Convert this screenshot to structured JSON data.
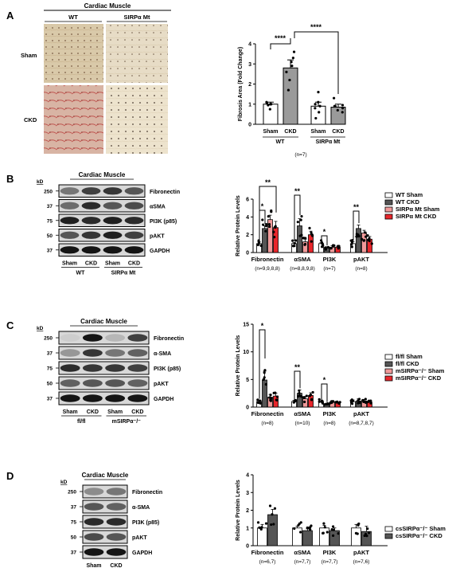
{
  "colors": {
    "black": "#000000",
    "gray": "#9a9a9a",
    "dark_gray": "#555555",
    "pink": "#f19a9a",
    "red": "#e8262b"
  },
  "panels": {
    "A": {
      "letter": "A",
      "header": "Cardiac Muscle",
      "col_labels": [
        "WT",
        "SIRPα Mt"
      ],
      "row_labels": [
        "Sham",
        "CKD"
      ]
    },
    "B": {
      "letter": "B",
      "header": "Cardiac Muscle",
      "kd": "kD",
      "markers": [
        "250",
        "37",
        "75",
        "50",
        "37"
      ],
      "bands": [
        "Fibronectin",
        "αSMA",
        "PI3K (p85)",
        "pAKT",
        "GAPDH"
      ],
      "lanes": [
        "Sham",
        "CKD",
        "Sham",
        "CKD"
      ],
      "groups": [
        "WT",
        "SIRPα Mt"
      ]
    },
    "C": {
      "letter": "C",
      "header": "Cardiac Muscle",
      "kd": "kD",
      "markers": [
        "250",
        "37",
        "75",
        "50",
        "37"
      ],
      "bands": [
        "Fibronectin",
        "α-SMA",
        "PI3K (p85)",
        "pAKT",
        "GAPDH"
      ],
      "lanes": [
        "Sham",
        "CKD",
        "Sham",
        "CKD"
      ],
      "groups": [
        "fl/fl",
        "mSIRPα⁻/⁻"
      ]
    },
    "D": {
      "letter": "D",
      "header": "Cardiac Muscle",
      "kd": "kD",
      "markers": [
        "250",
        "37",
        "75",
        "50",
        "37"
      ],
      "bands": [
        "Fibronectin",
        "α-SMA",
        "PI3K (p85)",
        "pAKT",
        "GAPDH"
      ],
      "lanes": [
        "Sham",
        "CKD"
      ],
      "groups": [
        "csSIRPα⁻/⁻"
      ]
    }
  },
  "chart_data": [
    {
      "panel": "A",
      "type": "bar",
      "ylabel": "Fibrosis Area (Fold Change)",
      "ylim": [
        0,
        4
      ],
      "yticks": [
        "0",
        "1",
        "2",
        "3",
        "4"
      ],
      "categories": [
        "Sham",
        "CKD",
        "Sham",
        "CKD"
      ],
      "groups": [
        "WT",
        "SIRPα Mt"
      ],
      "n_label": "(n=7)",
      "values": [
        1.0,
        2.8,
        0.9,
        0.85
      ],
      "errors": [
        0.1,
        0.4,
        0.2,
        0.15
      ],
      "points": [
        [
          1.0,
          1.0,
          1.05,
          0.95,
          0.75,
          1.0,
          1.1
        ],
        [
          3.6,
          3.1,
          2.2,
          1.7,
          3.3,
          2.9,
          2.6
        ],
        [
          1.6,
          0.3,
          0.9,
          0.8,
          0.6,
          1.1,
          1.0
        ],
        [
          1.3,
          0.6,
          0.8,
          0.9,
          0.7,
          0.95,
          0.9
        ]
      ],
      "fill": [
        "#ffffff",
        "#9a9a9a",
        "#ffffff",
        "#9a9a9a"
      ],
      "significance": [
        {
          "text": "****"
        },
        {
          "text": "****"
        }
      ]
    },
    {
      "panel": "B",
      "type": "bar",
      "ylabel": "Relative Protein Levels",
      "ylim": [
        0,
        6
      ],
      "yticks": [
        "0",
        "2",
        "4",
        "6"
      ],
      "categories": [
        "Fibronectin",
        "αSMA",
        "PI3K",
        "pAKT"
      ],
      "n_labels": [
        "(n=9,9,8,8)",
        "(n=8,8,9,8)",
        "(n=7)",
        "(n=8)"
      ],
      "series": [
        {
          "name": "WT Sham",
          "fill": "#ffffff",
          "values": [
            1.0,
            1.0,
            1.0,
            1.0
          ],
          "errors": [
            0.2,
            0.1,
            0.1,
            0.2
          ]
        },
        {
          "name": "WT CKD",
          "fill": "#555555",
          "values": [
            2.7,
            3.0,
            0.5,
            2.7
          ],
          "errors": [
            0.3,
            0.8,
            0.15,
            0.4
          ]
        },
        {
          "name": "SIRPα Mt Sham",
          "fill": "#f19a9a",
          "values": [
            3.7,
            1.2,
            0.6,
            2.2
          ],
          "errors": [
            0.5,
            0.3,
            0.15,
            0.3
          ]
        },
        {
          "name": "SIRPα Mt CKD",
          "fill": "#e8262b",
          "values": [
            2.8,
            2.0,
            0.6,
            1.5
          ],
          "errors": [
            0.7,
            0.4,
            0.1,
            0.3
          ]
        }
      ],
      "significance": [
        {
          "text": "**"
        },
        {
          "text": "*"
        },
        {
          "text": "**"
        },
        {
          "text": "*"
        },
        {
          "text": "**"
        }
      ]
    },
    {
      "panel": "C",
      "type": "bar",
      "ylabel": "Relative Protein Levels",
      "ylim": [
        0,
        15
      ],
      "yticks": [
        "0",
        "5",
        "10",
        "15"
      ],
      "categories": [
        "Fibronectin",
        "αSMA",
        "PI3K",
        "pAKT"
      ],
      "n_labels": [
        "(n=8)",
        "(n=10)",
        "(n=8)",
        "(n=8,7,8,7)"
      ],
      "series": [
        {
          "name": "fl/fl Sham",
          "fill": "#ffffff",
          "values": [
            1.0,
            1.0,
            1.0,
            1.0
          ],
          "errors": [
            0.3,
            0.2,
            0.3,
            0.3
          ]
        },
        {
          "name": "fl/fl CKD",
          "fill": "#555555",
          "values": [
            4.9,
            2.5,
            0.5,
            1.1
          ],
          "errors": [
            1.6,
            0.6,
            0.2,
            0.4
          ]
        },
        {
          "name": "mSIRPα⁻/⁻ Sham",
          "fill": "#f19a9a",
          "values": [
            1.8,
            1.5,
            0.9,
            1.1
          ],
          "errors": [
            0.5,
            0.4,
            0.3,
            0.3
          ]
        },
        {
          "name": "mSIRPα⁻/⁻ CKD",
          "fill": "#e8262b",
          "values": [
            2.0,
            2.1,
            0.7,
            0.9
          ],
          "errors": [
            0.5,
            0.5,
            0.2,
            0.3
          ]
        }
      ],
      "significance": [
        {
          "text": "*"
        },
        {
          "text": "**"
        },
        {
          "text": "*"
        }
      ]
    },
    {
      "panel": "D",
      "type": "bar",
      "ylabel": "Relative Protein Levels",
      "ylim": [
        0,
        4
      ],
      "yticks": [
        "0",
        "1",
        "2",
        "3",
        "4"
      ],
      "categories": [
        "Fibronectin",
        "αSMA",
        "PI3K",
        "pAKT"
      ],
      "n_labels": [
        "(n=6,7)",
        "(n=7,7)",
        "(n=7,7)",
        "(n=7,6)"
      ],
      "series": [
        {
          "name": "csSIRPα⁻/⁻ Sham",
          "fill": "#ffffff",
          "values": [
            1.0,
            1.0,
            1.0,
            1.0
          ],
          "errors": [
            0.2,
            0.1,
            0.15,
            0.2
          ]
        },
        {
          "name": "csSIRPα⁻/⁻ CKD",
          "fill": "#555555",
          "values": [
            1.75,
            0.85,
            0.85,
            0.8
          ],
          "errors": [
            0.3,
            0.1,
            0.15,
            0.3
          ]
        }
      ],
      "significance": []
    }
  ]
}
